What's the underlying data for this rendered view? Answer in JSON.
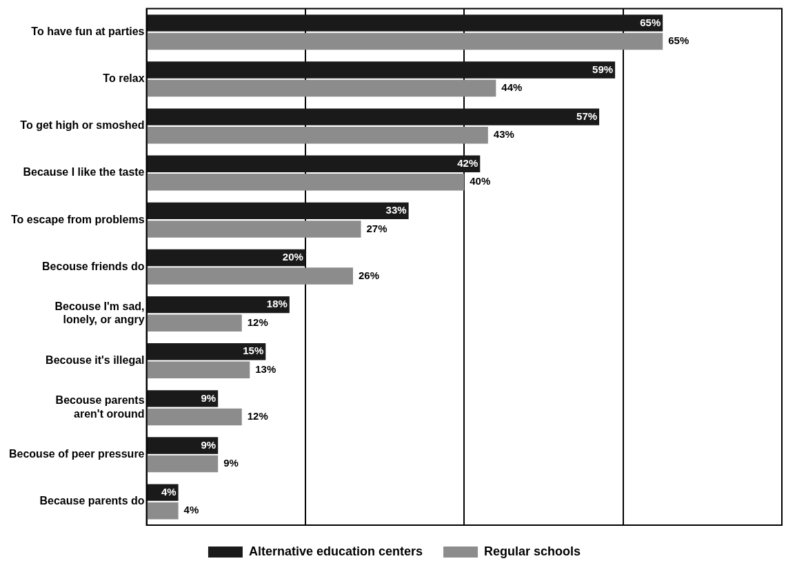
{
  "chart_data": {
    "type": "bar",
    "orientation": "horizontal",
    "grid": "x",
    "legend": "bottom",
    "tick_labels": "y",
    "categories": [
      "To have fun at parties",
      "To relax",
      "To get high or smoshed",
      "Because I like the taste",
      "To escape from problems",
      "Becouse friends do",
      "Becouse I'm sad,\nlonely, or angry",
      "Becouse it's illegal",
      "Becouse parents\naren't oround",
      "Becouse of peer pressure",
      "Because parents do"
    ],
    "series": [
      {
        "name": "Alternative education centers",
        "color": "#1a1a1a",
        "values": [
          65,
          59,
          57,
          42,
          33,
          20,
          18,
          15,
          9,
          9,
          4
        ],
        "value_labels": [
          "65%",
          "59%",
          "57%",
          "42%",
          "33%",
          "20%",
          "18%",
          "15%",
          "9%",
          "9%",
          "4%"
        ]
      },
      {
        "name": "Regular schools",
        "color": "#8c8c8c",
        "values": [
          65,
          44,
          43,
          40,
          27,
          26,
          12,
          13,
          12,
          9,
          4
        ],
        "value_labels": [
          "65%",
          "44%",
          "43%",
          "40%",
          "27%",
          "26%",
          "12%",
          "13%",
          "12%",
          "9%",
          "4%"
        ]
      }
    ]
  }
}
